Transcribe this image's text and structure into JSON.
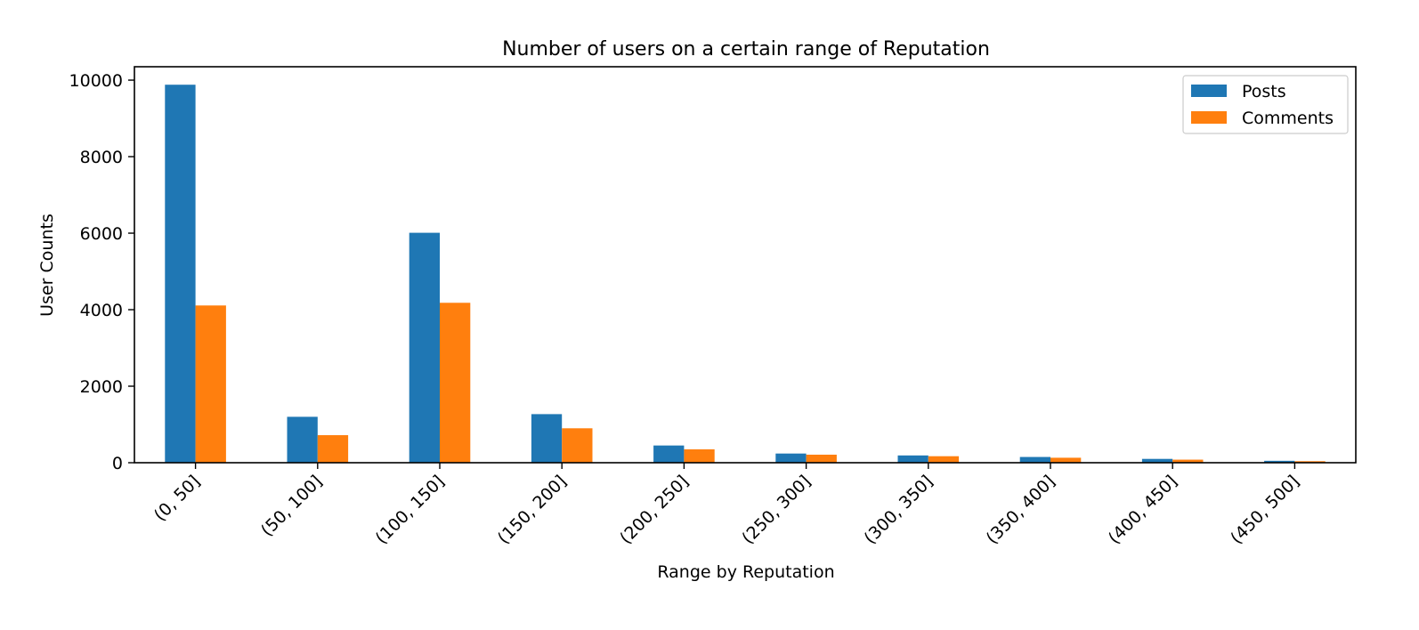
{
  "chart_data": {
    "type": "bar",
    "title": "Number of users on a certain range of Reputation",
    "xlabel": "Range by Reputation",
    "ylabel": "User Counts",
    "categories": [
      "(0, 50]",
      "(50, 100]",
      "(100, 150]",
      "(150, 200]",
      "(200, 250]",
      "(250, 300]",
      "(300, 350]",
      "(350, 400]",
      "(400, 450]",
      "(450, 500]"
    ],
    "series": [
      {
        "name": "Posts",
        "color": "#1f77b4",
        "values": [
          9880,
          1200,
          6010,
          1270,
          450,
          240,
          190,
          150,
          100,
          50
        ]
      },
      {
        "name": "Comments",
        "color": "#ff7f0e",
        "values": [
          4110,
          720,
          4180,
          900,
          350,
          210,
          170,
          130,
          80,
          40
        ]
      }
    ],
    "ylim": [
      0,
      10350
    ],
    "yticks": [
      0,
      2000,
      4000,
      6000,
      8000,
      10000
    ],
    "grid": false,
    "legend_position": "top-right"
  }
}
